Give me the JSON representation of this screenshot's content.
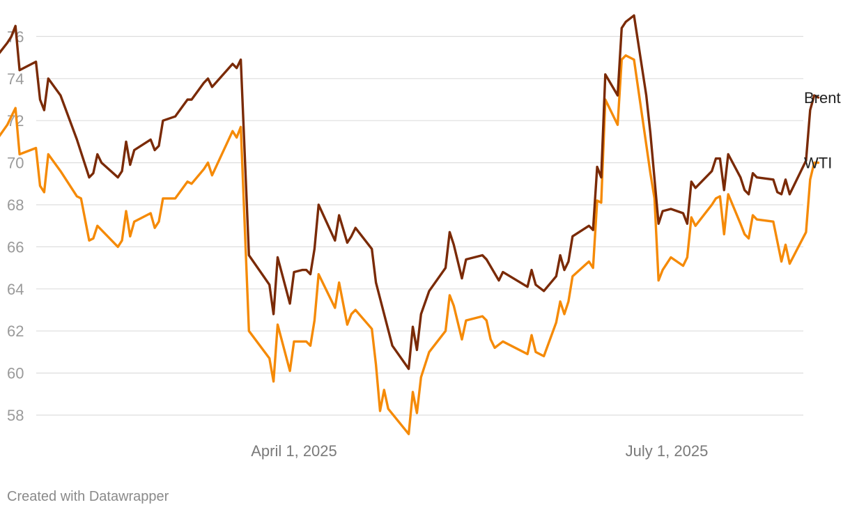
{
  "chart_data": {
    "type": "line",
    "title": "",
    "xlabel": "",
    "ylabel": "",
    "ylim": [
      57,
      77
    ],
    "yticks": [
      58,
      60,
      62,
      64,
      66,
      68,
      70,
      72,
      74,
      76
    ],
    "xticks": [
      {
        "date": "2025-04-01",
        "label": "April 1, 2025"
      },
      {
        "date": "2025-07-01",
        "label": "July 1, 2025"
      }
    ],
    "grid": true,
    "legend": "inline-right",
    "series": [
      {
        "name": "Brent",
        "color": "#7a2a06",
        "points": [
          [
            "2025-01-02",
            76.7
          ],
          [
            "2025-01-06",
            76.0
          ],
          [
            "2025-01-07",
            76.2
          ],
          [
            "2025-01-08",
            74.6
          ],
          [
            "2025-01-09",
            74.3
          ],
          [
            "2025-01-13",
            75.9
          ],
          [
            "2025-01-14",
            77.0
          ],
          [
            "2025-01-15",
            75.2
          ],
          [
            "2025-01-16",
            75.1
          ],
          [
            "2025-01-17",
            74.7
          ],
          [
            "2025-01-21",
            75.7
          ],
          [
            "2025-01-22",
            76.0
          ],
          [
            "2025-01-23",
            76.5
          ],
          [
            "2025-01-24",
            74.4
          ],
          [
            "2025-01-28",
            74.8
          ],
          [
            "2025-01-29",
            73.0
          ],
          [
            "2025-01-30",
            72.5
          ],
          [
            "2025-01-31",
            74.0
          ],
          [
            "2025-02-03",
            73.2
          ],
          [
            "2025-02-07",
            71.1
          ],
          [
            "2025-02-10",
            69.3
          ],
          [
            "2025-02-11",
            69.5
          ],
          [
            "2025-02-12",
            70.4
          ],
          [
            "2025-02-13",
            70.0
          ],
          [
            "2025-02-17",
            69.3
          ],
          [
            "2025-02-18",
            69.6
          ],
          [
            "2025-02-19",
            71.0
          ],
          [
            "2025-02-20",
            69.9
          ],
          [
            "2025-02-21",
            70.6
          ],
          [
            "2025-02-25",
            71.1
          ],
          [
            "2025-02-26",
            70.6
          ],
          [
            "2025-02-27",
            70.8
          ],
          [
            "2025-02-28",
            72.0
          ],
          [
            "2025-03-03",
            72.2
          ],
          [
            "2025-03-06",
            73.0
          ],
          [
            "2025-03-07",
            73.0
          ],
          [
            "2025-03-10",
            73.8
          ],
          [
            "2025-03-11",
            74.0
          ],
          [
            "2025-03-12",
            73.6
          ],
          [
            "2025-03-17",
            74.7
          ],
          [
            "2025-03-18",
            74.5
          ],
          [
            "2025-03-19",
            74.9
          ],
          [
            "2025-03-21",
            65.6
          ],
          [
            "2025-03-26",
            64.2
          ],
          [
            "2025-03-27",
            62.8
          ],
          [
            "2025-03-28",
            65.5
          ],
          [
            "2025-03-31",
            63.3
          ],
          [
            "2025-04-01",
            64.8
          ],
          [
            "2025-04-03",
            64.9
          ],
          [
            "2025-04-04",
            64.9
          ],
          [
            "2025-04-05",
            64.7
          ],
          [
            "2025-04-06",
            65.9
          ],
          [
            "2025-04-07",
            68.0
          ],
          [
            "2025-04-11",
            66.3
          ],
          [
            "2025-04-12",
            67.5
          ],
          [
            "2025-04-14",
            66.2
          ],
          [
            "2025-04-15",
            66.5
          ],
          [
            "2025-04-16",
            66.9
          ],
          [
            "2025-04-20",
            65.9
          ],
          [
            "2025-04-21",
            64.3
          ],
          [
            "2025-04-25",
            61.3
          ],
          [
            "2025-04-29",
            60.2
          ],
          [
            "2025-04-30",
            62.2
          ],
          [
            "2025-05-01",
            61.1
          ],
          [
            "2025-05-02",
            62.8
          ],
          [
            "2025-05-04",
            63.9
          ],
          [
            "2025-05-08",
            65.0
          ],
          [
            "2025-05-09",
            66.7
          ],
          [
            "2025-05-10",
            66.1
          ],
          [
            "2025-05-12",
            64.5
          ],
          [
            "2025-05-13",
            65.4
          ],
          [
            "2025-05-17",
            65.6
          ],
          [
            "2025-05-18",
            65.4
          ],
          [
            "2025-05-21",
            64.4
          ],
          [
            "2025-05-22",
            64.8
          ],
          [
            "2025-05-28",
            64.1
          ],
          [
            "2025-05-29",
            64.9
          ],
          [
            "2025-05-30",
            64.2
          ],
          [
            "2025-06-01",
            63.9
          ],
          [
            "2025-06-04",
            64.6
          ],
          [
            "2025-06-05",
            65.6
          ],
          [
            "2025-06-06",
            64.9
          ],
          [
            "2025-06-07",
            65.3
          ],
          [
            "2025-06-08",
            66.5
          ],
          [
            "2025-06-12",
            67.0
          ],
          [
            "2025-06-13",
            66.8
          ],
          [
            "2025-06-14",
            69.8
          ],
          [
            "2025-06-15",
            69.3
          ],
          [
            "2025-06-16",
            74.2
          ],
          [
            "2025-06-19",
            73.2
          ],
          [
            "2025-06-20",
            76.4
          ],
          [
            "2025-06-21",
            76.7
          ],
          [
            "2025-06-23",
            77.0
          ],
          [
            "2025-06-26",
            73.2
          ],
          [
            "2025-06-27",
            71.4
          ],
          [
            "2025-06-29",
            67.1
          ],
          [
            "2025-06-30",
            67.7
          ],
          [
            "2025-07-02",
            67.8
          ],
          [
            "2025-07-05",
            67.6
          ],
          [
            "2025-07-06",
            67.1
          ],
          [
            "2025-07-07",
            69.1
          ],
          [
            "2025-07-08",
            68.8
          ],
          [
            "2025-07-12",
            69.6
          ],
          [
            "2025-07-13",
            70.2
          ],
          [
            "2025-07-14",
            70.2
          ],
          [
            "2025-07-15",
            68.7
          ],
          [
            "2025-07-16",
            70.4
          ],
          [
            "2025-07-19",
            69.3
          ],
          [
            "2025-07-20",
            68.7
          ],
          [
            "2025-07-21",
            68.5
          ],
          [
            "2025-07-22",
            69.5
          ],
          [
            "2025-07-23",
            69.3
          ],
          [
            "2025-07-27",
            69.2
          ],
          [
            "2025-07-28",
            68.6
          ],
          [
            "2025-07-29",
            68.5
          ],
          [
            "2025-07-30",
            69.2
          ],
          [
            "2025-07-31",
            68.5
          ],
          [
            "2025-08-04",
            70.1
          ],
          [
            "2025-08-05",
            72.5
          ],
          [
            "2025-08-06",
            73.2
          ],
          [
            "2025-08-07",
            73.1
          ]
        ]
      },
      {
        "name": "WTI",
        "color": "#f58a07",
        "points": [
          [
            "2025-01-02",
            72.5
          ],
          [
            "2025-01-06",
            73.2
          ],
          [
            "2025-01-07",
            72.7
          ],
          [
            "2025-01-08",
            71.0
          ],
          [
            "2025-01-09",
            70.6
          ],
          [
            "2025-01-13",
            72.3
          ],
          [
            "2025-01-14",
            73.3
          ],
          [
            "2025-01-15",
            71.4
          ],
          [
            "2025-01-16",
            71.3
          ],
          [
            "2025-01-17",
            70.7
          ],
          [
            "2025-01-21",
            71.8
          ],
          [
            "2025-01-22",
            72.2
          ],
          [
            "2025-01-23",
            72.6
          ],
          [
            "2025-01-24",
            70.4
          ],
          [
            "2025-01-28",
            70.7
          ],
          [
            "2025-01-29",
            68.9
          ],
          [
            "2025-01-30",
            68.6
          ],
          [
            "2025-01-31",
            70.4
          ],
          [
            "2025-02-03",
            69.6
          ],
          [
            "2025-02-07",
            68.4
          ],
          [
            "2025-02-08",
            68.3
          ],
          [
            "2025-02-10",
            66.3
          ],
          [
            "2025-02-11",
            66.4
          ],
          [
            "2025-02-12",
            67.0
          ],
          [
            "2025-02-17",
            66.0
          ],
          [
            "2025-02-18",
            66.3
          ],
          [
            "2025-02-19",
            67.7
          ],
          [
            "2025-02-20",
            66.5
          ],
          [
            "2025-02-21",
            67.2
          ],
          [
            "2025-02-25",
            67.6
          ],
          [
            "2025-02-26",
            66.9
          ],
          [
            "2025-02-27",
            67.2
          ],
          [
            "2025-02-28",
            68.3
          ],
          [
            "2025-03-03",
            68.3
          ],
          [
            "2025-03-06",
            69.1
          ],
          [
            "2025-03-07",
            69.0
          ],
          [
            "2025-03-10",
            69.7
          ],
          [
            "2025-03-11",
            70.0
          ],
          [
            "2025-03-12",
            69.4
          ],
          [
            "2025-03-17",
            71.5
          ],
          [
            "2025-03-18",
            71.2
          ],
          [
            "2025-03-19",
            71.7
          ],
          [
            "2025-03-21",
            62.0
          ],
          [
            "2025-03-26",
            60.7
          ],
          [
            "2025-03-27",
            59.6
          ],
          [
            "2025-03-28",
            62.3
          ],
          [
            "2025-03-31",
            60.1
          ],
          [
            "2025-04-01",
            61.5
          ],
          [
            "2025-04-03",
            61.5
          ],
          [
            "2025-04-04",
            61.5
          ],
          [
            "2025-04-05",
            61.3
          ],
          [
            "2025-04-06",
            62.5
          ],
          [
            "2025-04-07",
            64.7
          ],
          [
            "2025-04-11",
            63.1
          ],
          [
            "2025-04-12",
            64.3
          ],
          [
            "2025-04-14",
            62.3
          ],
          [
            "2025-04-15",
            62.8
          ],
          [
            "2025-04-16",
            63.0
          ],
          [
            "2025-04-20",
            62.1
          ],
          [
            "2025-04-21",
            60.4
          ],
          [
            "2025-04-22",
            58.2
          ],
          [
            "2025-04-23",
            59.2
          ],
          [
            "2025-04-24",
            58.3
          ],
          [
            "2025-04-29",
            57.1
          ],
          [
            "2025-04-30",
            59.1
          ],
          [
            "2025-05-01",
            58.1
          ],
          [
            "2025-05-02",
            59.8
          ],
          [
            "2025-05-04",
            61.0
          ],
          [
            "2025-05-08",
            62.0
          ],
          [
            "2025-05-09",
            63.7
          ],
          [
            "2025-05-10",
            63.2
          ],
          [
            "2025-05-12",
            61.6
          ],
          [
            "2025-05-13",
            62.5
          ],
          [
            "2025-05-17",
            62.7
          ],
          [
            "2025-05-18",
            62.5
          ],
          [
            "2025-05-19",
            61.6
          ],
          [
            "2025-05-20",
            61.2
          ],
          [
            "2025-05-22",
            61.5
          ],
          [
            "2025-05-28",
            60.9
          ],
          [
            "2025-05-29",
            61.8
          ],
          [
            "2025-05-30",
            61.0
          ],
          [
            "2025-06-01",
            60.8
          ],
          [
            "2025-06-04",
            62.4
          ],
          [
            "2025-06-05",
            63.4
          ],
          [
            "2025-06-06",
            62.8
          ],
          [
            "2025-06-07",
            63.4
          ],
          [
            "2025-06-08",
            64.6
          ],
          [
            "2025-06-12",
            65.3
          ],
          [
            "2025-06-13",
            65.0
          ],
          [
            "2025-06-14",
            68.2
          ],
          [
            "2025-06-15",
            68.1
          ],
          [
            "2025-06-16",
            73.0
          ],
          [
            "2025-06-19",
            71.8
          ],
          [
            "2025-06-20",
            74.9
          ],
          [
            "2025-06-21",
            75.1
          ],
          [
            "2025-06-23",
            74.9
          ],
          [
            "2025-06-27",
            69.5
          ],
          [
            "2025-06-28",
            68.3
          ],
          [
            "2025-06-29",
            64.4
          ],
          [
            "2025-06-30",
            64.9
          ],
          [
            "2025-07-02",
            65.5
          ],
          [
            "2025-07-05",
            65.1
          ],
          [
            "2025-07-06",
            65.5
          ],
          [
            "2025-07-07",
            67.4
          ],
          [
            "2025-07-08",
            67.0
          ],
          [
            "2025-07-12",
            68.0
          ],
          [
            "2025-07-13",
            68.3
          ],
          [
            "2025-07-14",
            68.4
          ],
          [
            "2025-07-15",
            66.6
          ],
          [
            "2025-07-16",
            68.5
          ],
          [
            "2025-07-19",
            67.1
          ],
          [
            "2025-07-20",
            66.6
          ],
          [
            "2025-07-21",
            66.4
          ],
          [
            "2025-07-22",
            67.5
          ],
          [
            "2025-07-23",
            67.3
          ],
          [
            "2025-07-27",
            67.2
          ],
          [
            "2025-07-29",
            65.3
          ],
          [
            "2025-07-30",
            66.1
          ],
          [
            "2025-07-31",
            65.2
          ],
          [
            "2025-08-04",
            66.7
          ],
          [
            "2025-08-05",
            69.2
          ],
          [
            "2025-08-06",
            70.0
          ],
          [
            "2025-08-07",
            70.0
          ]
        ]
      }
    ]
  },
  "footer": {
    "credit": "Created with Datawrapper"
  }
}
